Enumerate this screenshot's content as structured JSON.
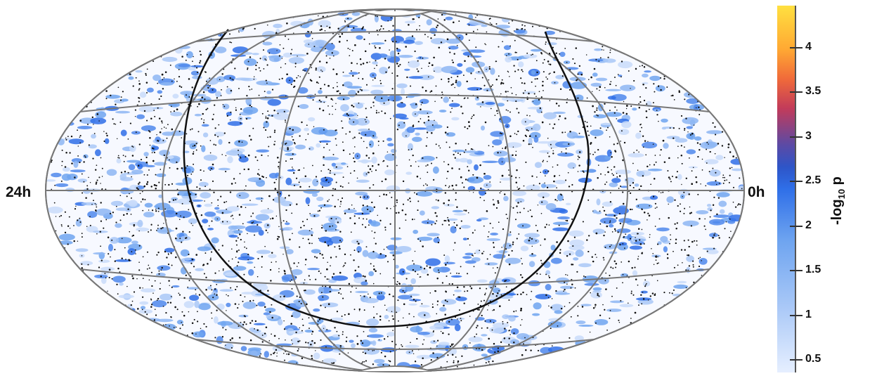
{
  "map": {
    "ra_left_label": "24h",
    "ra_right_label": "0h",
    "projection": "Aitoff-Hammer equal-area sky map"
  },
  "colorbar": {
    "title_prefix": "-log",
    "title_sub": "10",
    "title_suffix": " p",
    "ticks": [
      "0.5",
      "1",
      "1.5",
      "2",
      "2.5",
      "3",
      "3.5",
      "4"
    ],
    "colors": [
      "#e6efff",
      "#6ea4f0",
      "#2f6fe8",
      "#5b4aa5",
      "#c23b5a",
      "#ffa833",
      "#ffe040"
    ]
  }
}
